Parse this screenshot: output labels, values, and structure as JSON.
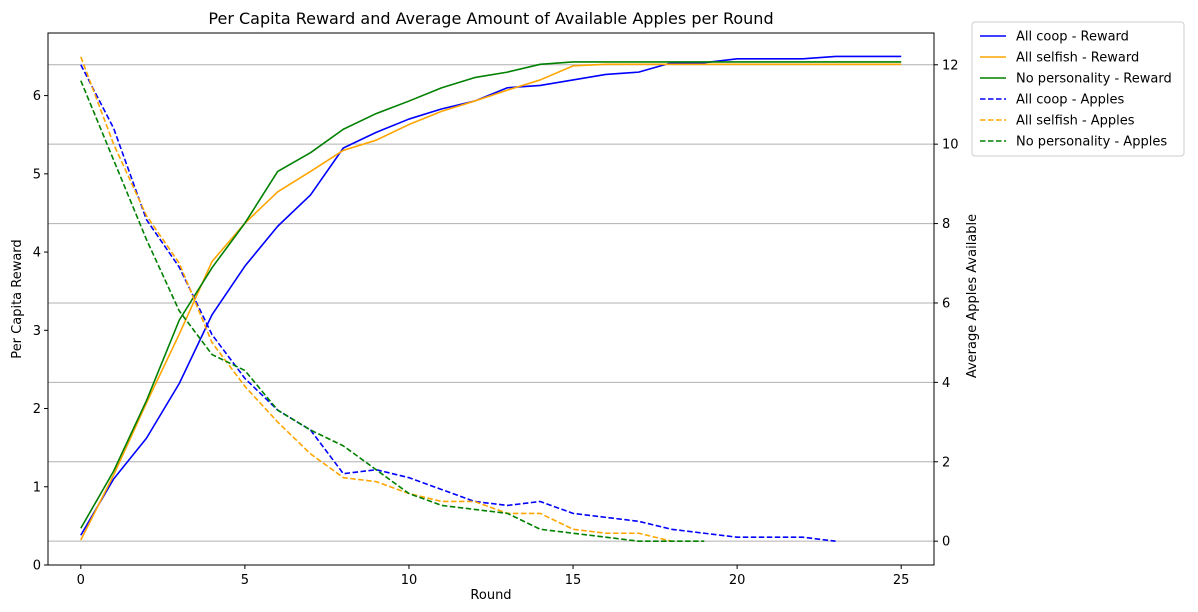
{
  "chart_data": {
    "type": "line",
    "title": "Per Capita Reward and Average Amount of Available Apples per Round",
    "xlabel": "Round",
    "ylabel_left": "Per Capita Reward",
    "ylabel_right": "Average Apples Available",
    "xlim": [
      -1,
      26
    ],
    "ylim_left": [
      0,
      6.8
    ],
    "ylim_right": [
      -0.6,
      12.8
    ],
    "xticks": [
      0,
      5,
      10,
      15,
      20,
      25
    ],
    "yticks_left": [
      0,
      1,
      2,
      3,
      4,
      5,
      6
    ],
    "yticks_right": [
      0,
      2,
      4,
      6,
      8,
      10,
      12
    ],
    "grid": "right-axis horizontal",
    "legend_position": "outside-upper-right",
    "series": [
      {
        "name": "All coop - Reward",
        "axis": "left",
        "style": "solid",
        "color": "#0000ff",
        "x": [
          0,
          1,
          2,
          3,
          4,
          5,
          6,
          7,
          8,
          9,
          10,
          11,
          12,
          13,
          14,
          15,
          16,
          17,
          18,
          19,
          20,
          21,
          22,
          23,
          24,
          25
        ],
        "y": [
          0.38,
          1.1,
          1.62,
          2.32,
          3.2,
          3.82,
          4.33,
          4.73,
          5.33,
          5.53,
          5.7,
          5.83,
          5.93,
          6.1,
          6.13,
          6.2,
          6.27,
          6.3,
          6.42,
          6.42,
          6.47,
          6.47,
          6.47,
          6.5,
          6.5,
          6.5
        ]
      },
      {
        "name": "All selfish - Reward",
        "axis": "left",
        "style": "solid",
        "color": "#ffa500",
        "x": [
          0,
          1,
          2,
          3,
          4,
          5,
          6,
          7,
          8,
          9,
          10,
          11,
          12,
          13,
          14,
          15,
          16,
          17,
          18,
          19,
          20,
          21,
          22,
          23,
          24,
          25
        ],
        "y": [
          0.32,
          1.15,
          2.07,
          2.95,
          3.88,
          4.37,
          4.77,
          5.03,
          5.3,
          5.43,
          5.63,
          5.8,
          5.93,
          6.07,
          6.2,
          6.38,
          6.4,
          6.4,
          6.4,
          6.4,
          6.4,
          6.4,
          6.4,
          6.4,
          6.4,
          6.4
        ]
      },
      {
        "name": "No personality - Reward",
        "axis": "left",
        "style": "solid",
        "color": "#008000",
        "x": [
          0,
          1,
          2,
          3,
          4,
          5,
          6,
          7,
          8,
          9,
          10,
          11,
          12,
          13,
          14,
          15,
          16,
          17,
          18,
          19,
          20,
          21,
          22,
          23,
          24,
          25
        ],
        "y": [
          0.47,
          1.2,
          2.1,
          3.13,
          3.8,
          4.37,
          5.03,
          5.27,
          5.57,
          5.77,
          5.93,
          6.1,
          6.23,
          6.3,
          6.4,
          6.43,
          6.43,
          6.43,
          6.43,
          6.43,
          6.43,
          6.43,
          6.43,
          6.43,
          6.43,
          6.43
        ]
      },
      {
        "name": "All coop - Apples",
        "axis": "right",
        "style": "dashed",
        "color": "#0000ff",
        "x": [
          0,
          1,
          2,
          3,
          4,
          5,
          6,
          7,
          8,
          9,
          10,
          11,
          12,
          13,
          14,
          15,
          16,
          17,
          18,
          19,
          20,
          21,
          22,
          23
        ],
        "y": [
          12.0,
          10.4,
          8.1,
          6.9,
          5.2,
          4.1,
          3.3,
          2.8,
          1.7,
          1.8,
          1.6,
          1.3,
          1.0,
          0.9,
          1.0,
          0.7,
          0.6,
          0.5,
          0.3,
          0.2,
          0.1,
          0.1,
          0.1,
          0.0
        ]
      },
      {
        "name": "All selfish - Apples",
        "axis": "right",
        "style": "dashed",
        "color": "#ffa500",
        "x": [
          0,
          1,
          2,
          3,
          4,
          5,
          6,
          7,
          8,
          9,
          10,
          11,
          12,
          13,
          14,
          15,
          16,
          17,
          18
        ],
        "y": [
          12.2,
          10.0,
          8.2,
          7.0,
          5.0,
          3.9,
          3.0,
          2.2,
          1.6,
          1.5,
          1.2,
          1.0,
          1.0,
          0.7,
          0.7,
          0.3,
          0.2,
          0.2,
          0.0
        ]
      },
      {
        "name": "No personality - Apples",
        "axis": "right",
        "style": "dashed",
        "color": "#008000",
        "x": [
          0,
          1,
          2,
          3,
          4,
          5,
          6,
          7,
          8,
          9,
          10,
          11,
          12,
          13,
          14,
          15,
          16,
          17,
          18,
          19
        ],
        "y": [
          11.6,
          9.6,
          7.6,
          5.8,
          4.7,
          4.3,
          3.3,
          2.8,
          2.4,
          1.8,
          1.2,
          0.9,
          0.8,
          0.7,
          0.3,
          0.2,
          0.1,
          0.0,
          0.0,
          0.0
        ]
      }
    ]
  }
}
